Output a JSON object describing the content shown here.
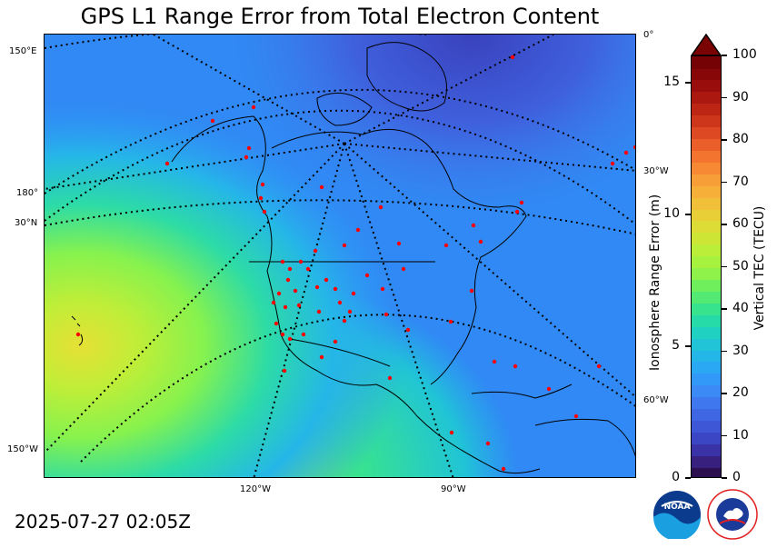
{
  "title": "GPS L1 Range Error from Total Electron Content",
  "timestamp": "2025-07-27 02:05Z",
  "map": {
    "projection": "polar stereographic",
    "region": "North America",
    "graticule_labels": {
      "top_right": "0°",
      "right_upper": "30°W",
      "right_lower": "60°W",
      "left_top": "150°E",
      "left_mid": "180°",
      "left_lat": "30°N",
      "left_bottom": "150°W",
      "bottom_left": "120°W",
      "bottom_right": "90°W"
    },
    "station_color": "#ff0000",
    "coastline_color": "#000000"
  },
  "colorbar": {
    "left_axis_label": "Ionosphere Range Error (m)",
    "right_axis_label": "Vertical TEC (TECU)",
    "left_ticks": [
      "0",
      "5",
      "10",
      "15"
    ],
    "right_ticks": [
      "0",
      "10",
      "20",
      "30",
      "40",
      "50",
      "60",
      "70",
      "80",
      "90",
      "100"
    ],
    "extend": "max",
    "colors": [
      "#2b0f4f",
      "#38207f",
      "#3a33a8",
      "#3b46c4",
      "#3e57d6",
      "#3f67e3",
      "#3f78ee",
      "#3b8af6",
      "#3299f9",
      "#2ba8f4",
      "#25b6e8",
      "#20c4d6",
      "#1fd1c1",
      "#26dba8",
      "#38e38e",
      "#52ea73",
      "#70ef5c",
      "#8ef24b",
      "#a6f23f",
      "#bbee38",
      "#cde636",
      "#dddb36",
      "#e9cf37",
      "#f1c039",
      "#f6b03a",
      "#f89e38",
      "#f78934",
      "#f2742f",
      "#e95e29",
      "#dc4922",
      "#ce361b",
      "#bd2615",
      "#ab1810",
      "#990d0c",
      "#870709",
      "#750305"
    ],
    "tip_color": "#7a0404"
  },
  "logos": {
    "noaa": "NOAA",
    "nws": "NATIONAL WEATHER SERVICE"
  }
}
